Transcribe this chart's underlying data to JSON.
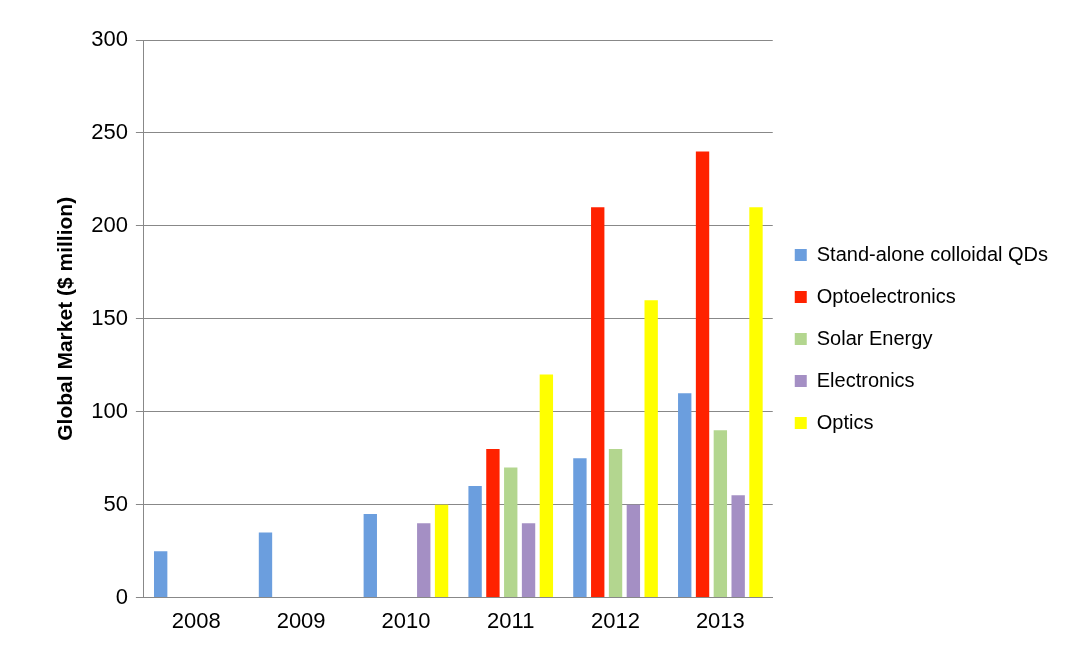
{
  "chart_data": {
    "type": "bar",
    "ylabel": "Global Market ($ million)",
    "categories": [
      "2008",
      "2009",
      "2010",
      "2011",
      "2012",
      "2013"
    ],
    "series": [
      {
        "name": "Stand-alone colloidal QDs",
        "color": "#6b9ede",
        "values": [
          25,
          35,
          45,
          60,
          75,
          110
        ]
      },
      {
        "name": "Optoelectronics",
        "color": "#ff2200",
        "values": [
          null,
          null,
          null,
          80,
          210,
          240
        ]
      },
      {
        "name": "Solar Energy",
        "color": "#b3d68f",
        "values": [
          null,
          null,
          null,
          70,
          80,
          90
        ]
      },
      {
        "name": "Electronics",
        "color": "#a48fc4",
        "values": [
          null,
          null,
          40,
          40,
          50,
          55
        ]
      },
      {
        "name": "Optics",
        "color": "#ffff00",
        "values": [
          null,
          null,
          50,
          120,
          160,
          210
        ]
      }
    ],
    "ylim": [
      0,
      300
    ],
    "yticks": [
      0,
      50,
      100,
      150,
      200,
      250,
      300
    ],
    "grid": "y",
    "legend": "right"
  }
}
